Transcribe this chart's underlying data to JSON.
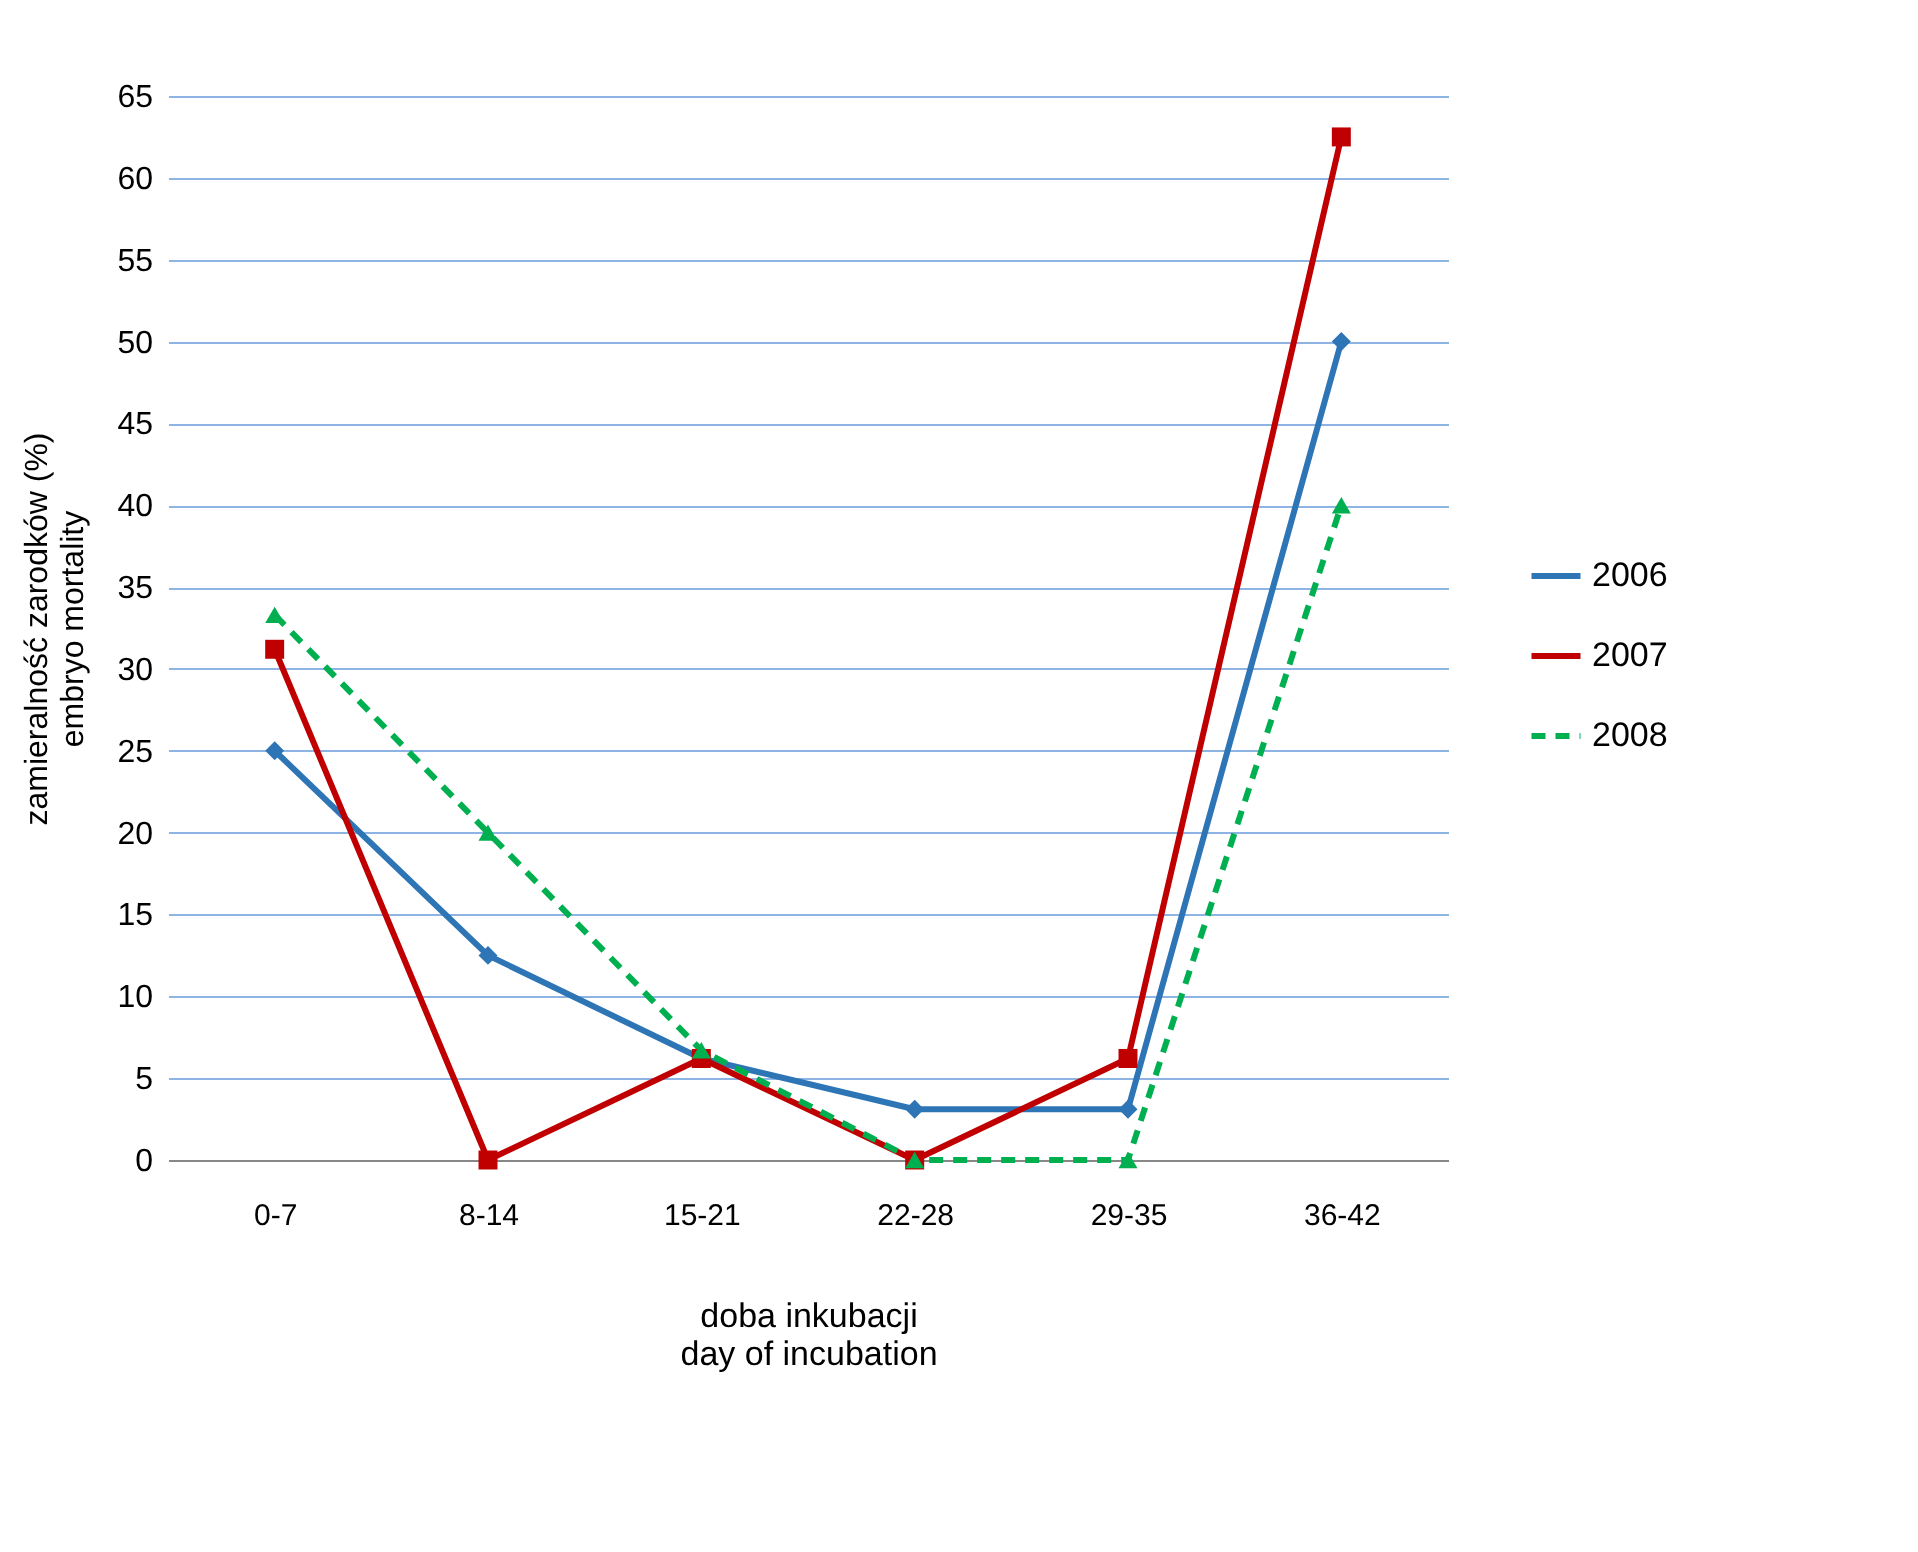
{
  "chart_data": {
    "type": "line",
    "xlabel": "doba inkubacji\nday of incubation",
    "ylabel": "zamieralność zarodków (%)\nembryo mortality",
    "categories": [
      "0-7",
      "8-14",
      "15-21",
      "22-28",
      "29-35",
      "36-42"
    ],
    "ylim": [
      0,
      65
    ],
    "yticks": [
      0,
      5,
      10,
      15,
      20,
      25,
      30,
      35,
      40,
      45,
      50,
      55,
      60,
      65
    ],
    "grid": "y",
    "legend": "right",
    "series": [
      {
        "name": "2006",
        "color": "#2e75b6",
        "marker": "diamond",
        "line_style": "solid",
        "values": [
          25,
          12.5,
          6.2,
          3.1,
          3.1,
          50
        ]
      },
      {
        "name": "2007",
        "color": "#c00000",
        "marker": "square",
        "line_style": "solid",
        "values": [
          31.2,
          0,
          6.2,
          0,
          6.2,
          62.5
        ]
      },
      {
        "name": "2008",
        "color": "#00b050",
        "marker": "triangle",
        "line_style": "dashed",
        "values": [
          33.3,
          20,
          6.7,
          0,
          0,
          40
        ]
      }
    ]
  }
}
